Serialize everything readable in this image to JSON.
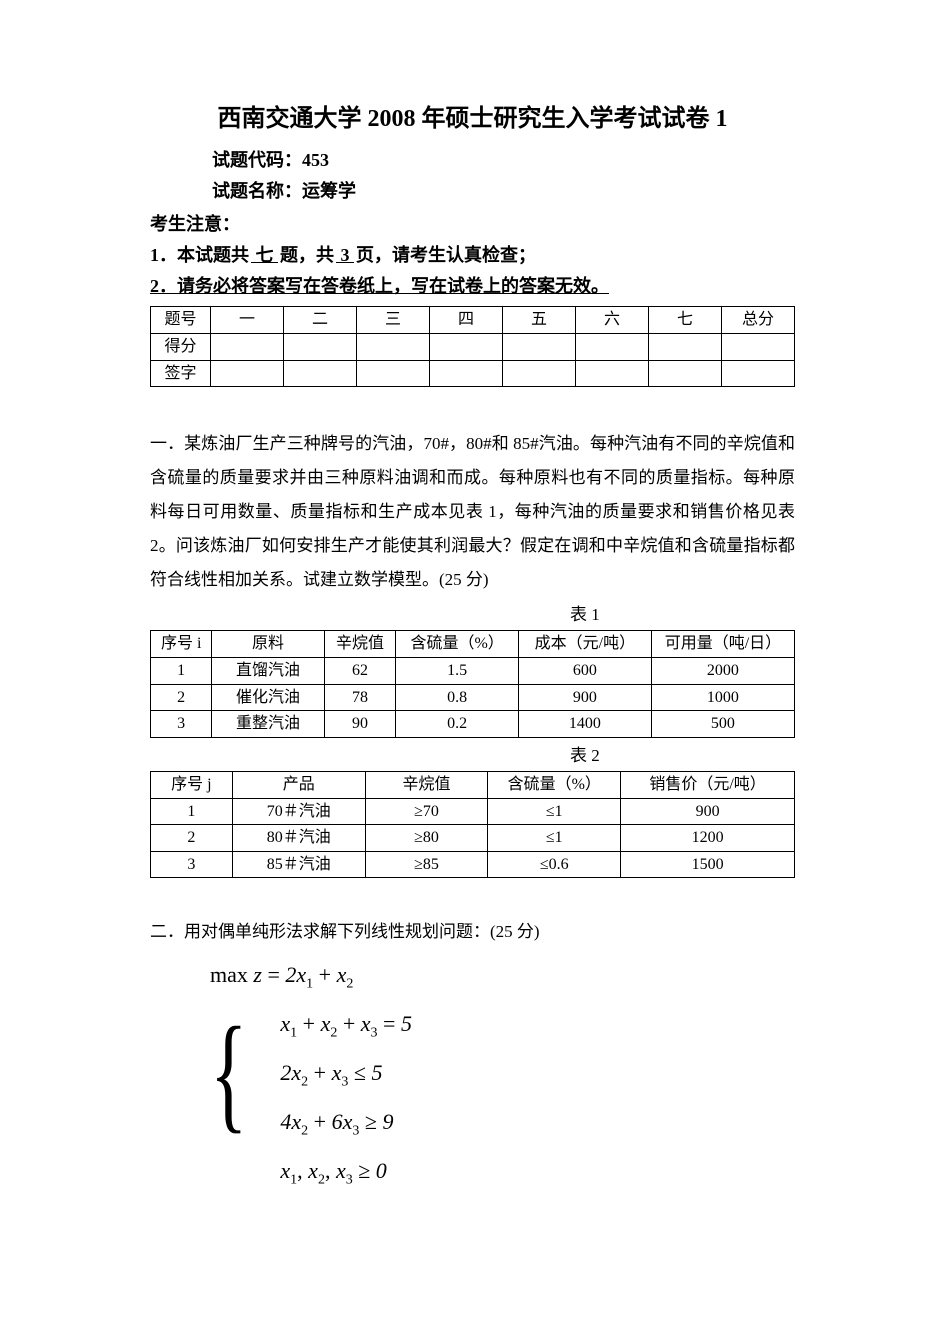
{
  "header": {
    "title_main": "西南交通大学 2008 年硕士研究生入学考试试卷 1",
    "code_line": "试题代码：453",
    "name_line": "试题名称：运筹学",
    "notice_label": "考生注意：",
    "notice1_prefix": "1．本试题共",
    "notice1_count_q": " 七 ",
    "notice1_mid": "题，共",
    "notice1_count_p": " 3 ",
    "notice1_suffix": "页，请考生认真检查；",
    "notice2_prefix": "2．请务必将答案写在",
    "notice2_bold": "答卷纸",
    "notice2_suffix": "上，写在试卷上的答案无效。"
  },
  "score_table": {
    "row_headers": [
      "题号",
      "得分",
      "签字"
    ],
    "cols": [
      "一",
      "二",
      "三",
      "四",
      "五",
      "六",
      "七",
      "总分"
    ]
  },
  "q1": {
    "text": "一．某炼油厂生产三种牌号的汽油，70#，80#和 85#汽油。每种汽油有不同的辛烷值和含硫量的质量要求并由三种原料油调和而成。每种原料也有不同的质量指标。每种原料每日可用数量、质量指标和生产成本见表 1，每种汽油的质量要求和销售价格见表 2。问该炼油厂如何安排生产才能使其利润最大？假定在调和中辛烷值和含硫量指标都符合线性相加关系。试建立数学模型。(25 分)"
  },
  "table1": {
    "label": "表 1",
    "headers": [
      "序号 i",
      "原料",
      "辛烷值",
      "含硫量（%）",
      "成本（元/吨）",
      "可用量（吨/日）"
    ],
    "rows": [
      [
        "1",
        "直馏汽油",
        "62",
        "1.5",
        "600",
        "2000"
      ],
      [
        "2",
        "催化汽油",
        "78",
        "0.8",
        "900",
        "1000"
      ],
      [
        "3",
        "重整汽油",
        "90",
        "0.2",
        "1400",
        "500"
      ]
    ],
    "col_widths": [
      "60px",
      "110px",
      "70px",
      "120px",
      "130px",
      "140px"
    ]
  },
  "table2": {
    "label": "表 2",
    "headers": [
      "序号 j",
      "产品",
      "辛烷值",
      "含硫量（%）",
      "销售价（元/吨）"
    ],
    "rows": [
      [
        "1",
        "70＃汽油",
        "≥70",
        "≤1",
        "900"
      ],
      [
        "2",
        "80＃汽油",
        "≥80",
        "≤1",
        "1200"
      ],
      [
        "3",
        "85＃汽油",
        "≥85",
        "≤0.6",
        "1500"
      ]
    ],
    "col_widths": [
      "80px",
      "130px",
      "120px",
      "130px",
      "170px"
    ]
  },
  "q2": {
    "text": "二．用对偶单纯形法求解下列线性规划问题：(25 分)",
    "objective": "max z = 2x₁ + x₂",
    "constraints": [
      "x₁ + x₂ + x₃ = 5",
      "2x₂ + x₃ ≤ 5",
      "4x₂ + 6x₃ ≥ 9",
      "x₁, x₂, x₃ ≥ 0"
    ]
  },
  "colors": {
    "text": "#000000",
    "background": "#ffffff",
    "border": "#000000"
  }
}
